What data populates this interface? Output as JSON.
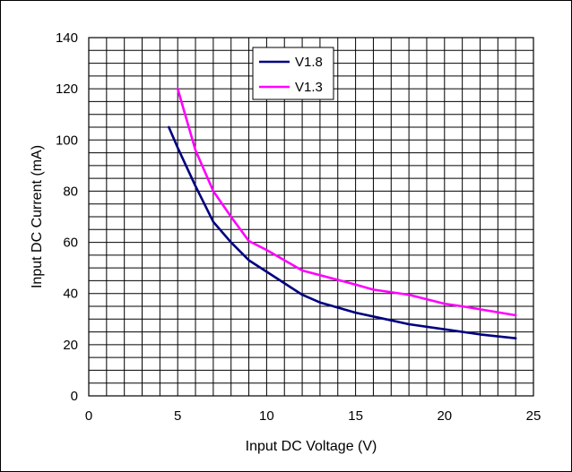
{
  "chart_data": {
    "type": "line",
    "title": "",
    "xlabel": "Input DC Voltage (V)",
    "ylabel": "Input DC Current (mA)",
    "xlim": [
      0,
      25
    ],
    "ylim": [
      0,
      140
    ],
    "x_ticks": [
      0,
      5,
      10,
      15,
      20,
      25
    ],
    "y_ticks": [
      0,
      20,
      40,
      60,
      80,
      100,
      120,
      140
    ],
    "grid": true,
    "x_minor_step": 1,
    "y_minor_step": 5,
    "legend_position": "top-center",
    "series": [
      {
        "name": "V1.8",
        "color": "#000080",
        "x": [
          4.5,
          5,
          6,
          7,
          8,
          9,
          10,
          12,
          13,
          15,
          17,
          18,
          20,
          22,
          24
        ],
        "y": [
          105,
          97,
          82,
          68,
          60,
          53,
          48.5,
          39.5,
          36.5,
          32.5,
          29.5,
          28,
          26,
          24,
          22.5
        ]
      },
      {
        "name": "V1.3",
        "color": "#ff00ff",
        "x": [
          5,
          6,
          7,
          8,
          9,
          10,
          12,
          15,
          16,
          18,
          20,
          21,
          24
        ],
        "y": [
          120,
          96,
          80,
          70,
          60.5,
          57,
          49,
          43.5,
          41.5,
          39.5,
          36,
          35,
          31.5
        ]
      }
    ]
  }
}
